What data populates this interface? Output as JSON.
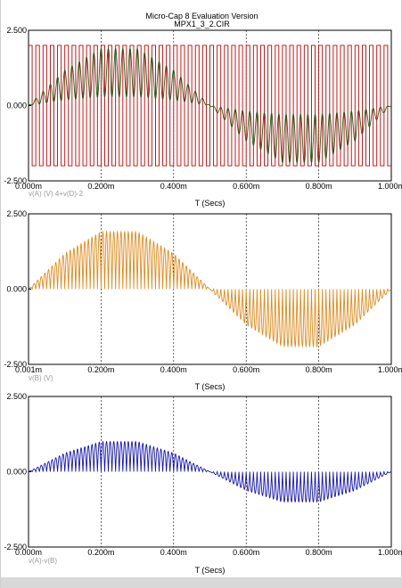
{
  "header": {
    "title": "Micro-Cap 8 Evaluation Version",
    "subtitle": "MPX1_3_2.CIR"
  },
  "chart_data": [
    {
      "type": "line",
      "xlabel": "T (Secs)",
      "trace_expression": "v(A) (V)   4+v(D)-2",
      "xlim": [
        0,
        0.001
      ],
      "ylim": [
        -2.5,
        2.5
      ],
      "x_tick_labels": [
        "0.000m",
        "0.200m",
        "0.400m",
        "0.600m",
        "0.800m",
        "1.000m"
      ],
      "y_tick_labels": [
        "2.500",
        "0.000",
        "-2.500"
      ],
      "grid": "vertical dotted",
      "series": [
        {
          "color": "#c00000",
          "kind": "square_wave",
          "high": 2.0,
          "low": -2.0,
          "period_ms": 0.02,
          "x_ms": [
            0,
            1.0
          ]
        },
        {
          "color": "#1a5e1a",
          "kind": "carrier_modulated_sine",
          "x_ms": [
            0,
            0.1,
            0.2,
            0.3,
            0.4,
            0.5,
            0.6,
            0.7,
            0.8,
            0.9,
            1.0
          ],
          "envelope": [
            0,
            1.18,
            1.9,
            1.9,
            1.18,
            0,
            -1.18,
            -1.9,
            -1.9,
            -1.18,
            0
          ]
        }
      ]
    },
    {
      "type": "line",
      "xlabel": "T (Secs)",
      "trace_expression": "v(B) (V)",
      "xlim": [
        1e-06,
        0.001
      ],
      "ylim": [
        -2.5,
        2.5
      ],
      "x_tick_labels": [
        "0.001m",
        "0.200m",
        "0.400m",
        "0.600m",
        "0.800m",
        "1.000m"
      ],
      "y_tick_labels": [
        "2.500",
        "0.000",
        "-2.500"
      ],
      "grid": "vertical dotted",
      "series": [
        {
          "color": "#e08a1e",
          "kind": "rectified_pulses",
          "x_ms": [
            0,
            0.1,
            0.2,
            0.3,
            0.4,
            0.5,
            0.6,
            0.7,
            0.8,
            0.9,
            1.0
          ],
          "envelope": [
            0,
            1.18,
            1.9,
            1.9,
            1.18,
            0,
            -1.18,
            -1.9,
            -1.9,
            -1.18,
            0
          ]
        }
      ]
    },
    {
      "type": "line",
      "xlabel": "T (Secs)",
      "trace_expression": "v(A)-v(B)",
      "xlim": [
        0,
        0.001
      ],
      "ylim": [
        -2.5,
        2.5
      ],
      "x_tick_labels": [
        "0.000m",
        "0.200m",
        "0.400m",
        "0.600m",
        "0.800m",
        "1.000m"
      ],
      "y_tick_labels": [
        "2.500",
        "0.000",
        "-2.500"
      ],
      "grid": "vertical dotted",
      "series": [
        {
          "color": "#1515b0",
          "kind": "rectified_pulses",
          "x_ms": [
            0,
            0.1,
            0.2,
            0.3,
            0.4,
            0.5,
            0.6,
            0.7,
            0.8,
            0.9,
            1.0
          ],
          "envelope": [
            0,
            0.62,
            1.0,
            1.0,
            0.62,
            0,
            -0.62,
            -1.0,
            -1.0,
            -0.62,
            0
          ]
        }
      ]
    }
  ]
}
